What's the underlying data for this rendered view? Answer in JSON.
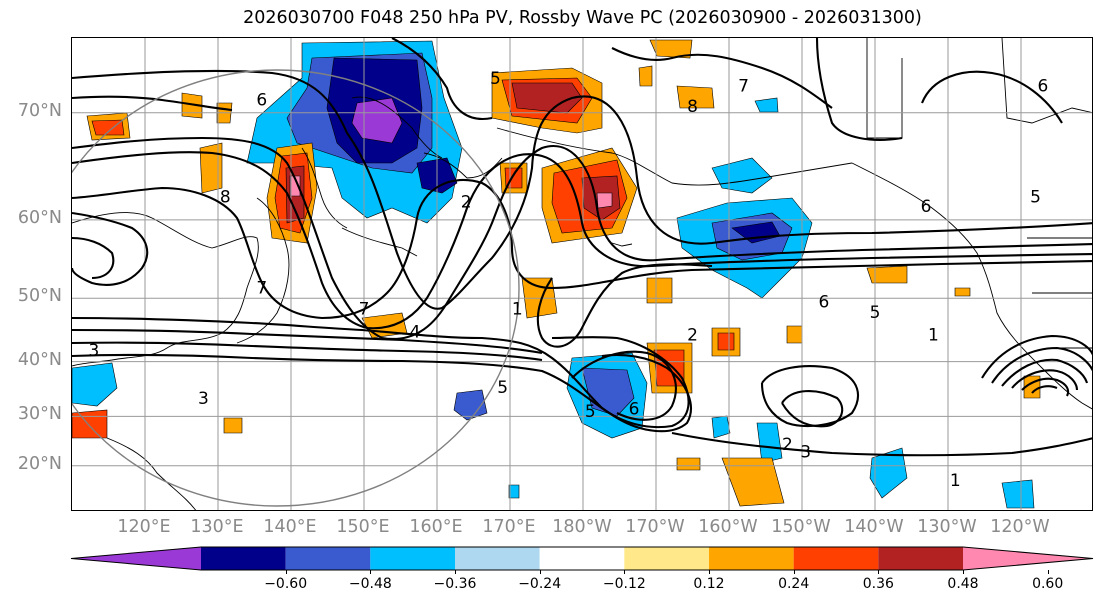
{
  "title": "2026030700 F048 250 hPa PV, Rossby Wave PC (2026030900 - 2026031300)",
  "lat_labels": [
    {
      "label": "70°N",
      "lat": 70
    },
    {
      "label": "60°N",
      "lat": 60
    },
    {
      "label": "50°N",
      "lat": 50
    },
    {
      "label": "40°N",
      "lat": 40
    },
    {
      "label": "30°N",
      "lat": 30
    },
    {
      "label": "20°N",
      "lat": 20
    }
  ],
  "lon_labels": [
    {
      "label": "120°E",
      "lon": 120
    },
    {
      "label": "130°E",
      "lon": 130
    },
    {
      "label": "140°E",
      "lon": 140
    },
    {
      "label": "150°E",
      "lon": 150
    },
    {
      "label": "160°E",
      "lon": 160
    },
    {
      "label": "170°E",
      "lon": 170
    },
    {
      "label": "180°W",
      "lon": 180
    },
    {
      "label": "170°W",
      "lon": 190
    },
    {
      "label": "160°W",
      "lon": 200
    },
    {
      "label": "150°W",
      "lon": 210
    },
    {
      "label": "140°W",
      "lon": 220
    },
    {
      "label": "130°W",
      "lon": 230
    },
    {
      "label": "120°W",
      "lon": 240
    }
  ],
  "extent": {
    "lon_min": 110,
    "lon_max": 250,
    "lat_min": 10,
    "lat_max": 75
  },
  "colorbar": {
    "colors": [
      "#9b39d6",
      "#00008b",
      "#3a5bd0",
      "#00bfff",
      "#add8f0",
      "#ffffff",
      "#ffe88a",
      "#ffa500",
      "#ff4000",
      "#b22222",
      "#ff88b0"
    ],
    "tick_labels": [
      "−0.60",
      "−0.48",
      "−0.36",
      "−0.24",
      "−0.12",
      "0.12",
      "0.24",
      "0.36",
      "0.48",
      "0.60"
    ]
  },
  "contour_labels": [
    {
      "text": "6",
      "lon": 136,
      "lat": 71
    },
    {
      "text": "5",
      "lon": 168,
      "lat": 72.5
    },
    {
      "text": "8",
      "lon": 195,
      "lat": 70.5
    },
    {
      "text": "7",
      "lon": 202,
      "lat": 72
    },
    {
      "text": "6",
      "lon": 243,
      "lat": 72
    },
    {
      "text": "5",
      "lon": 242,
      "lat": 62.5
    },
    {
      "text": "6",
      "lon": 227,
      "lat": 61.5
    },
    {
      "text": "8",
      "lon": 131,
      "lat": 62.5
    },
    {
      "text": "2",
      "lon": 164,
      "lat": 62
    },
    {
      "text": "7",
      "lon": 136,
      "lat": 51.5
    },
    {
      "text": "7",
      "lon": 150,
      "lat": 48.5
    },
    {
      "text": "6",
      "lon": 213,
      "lat": 49.5
    },
    {
      "text": "5",
      "lon": 220,
      "lat": 48
    },
    {
      "text": "1",
      "lon": 228,
      "lat": 44.5
    },
    {
      "text": "2",
      "lon": 195,
      "lat": 44.5
    },
    {
      "text": "1",
      "lon": 171,
      "lat": 48.5
    },
    {
      "text": "4",
      "lon": 157,
      "lat": 45
    },
    {
      "text": "3",
      "lon": 113,
      "lat": 42
    },
    {
      "text": "3",
      "lon": 128,
      "lat": 33.5
    },
    {
      "text": "5",
      "lon": 169,
      "lat": 35.5
    },
    {
      "text": "6",
      "lon": 187,
      "lat": 31.5
    },
    {
      "text": "5",
      "lon": 181,
      "lat": 31
    },
    {
      "text": "2",
      "lon": 208,
      "lat": 24.5
    },
    {
      "text": "3",
      "lon": 210.5,
      "lat": 23
    },
    {
      "text": "1",
      "lon": 231,
      "lat": 17
    }
  ]
}
